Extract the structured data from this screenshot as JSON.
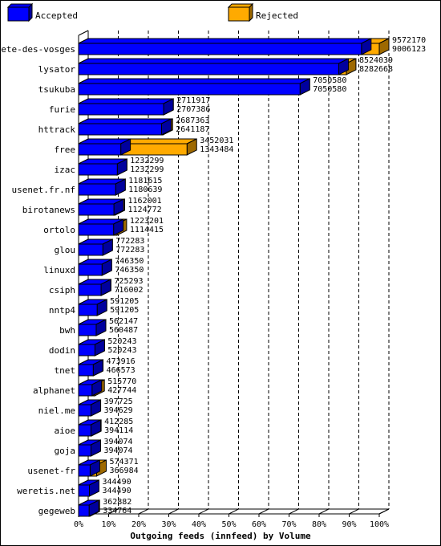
{
  "chart_data": {
    "type": "bar",
    "orientation": "horizontal",
    "style": "3d-overlapping",
    "xlabel": "Outgoing feeds (innfeed) by Volume",
    "xlim": [
      0,
      100
    ],
    "x_ticks": [
      "0%",
      "10%",
      "20%",
      "30%",
      "40%",
      "50%",
      "60%",
      "70%",
      "80%",
      "90%",
      "100%"
    ],
    "legend_position": "top",
    "grid": "vertical dashed",
    "series_meta": [
      {
        "name": "Accepted",
        "color": "#0000ff"
      },
      {
        "name": "Rejected",
        "color": "#ffaa00"
      }
    ],
    "categories": [
      "bete-des-vosges",
      "lysator",
      "tsukuba",
      "furie",
      "httrack",
      "free",
      "izac",
      "usenet.fr.nf",
      "birotanews",
      "ortolo",
      "glou",
      "linuxd",
      "csiph",
      "nntp4",
      "bwh",
      "dodin",
      "tnet",
      "alphanet",
      "niel.me",
      "aioe",
      "goja",
      "usenet-fr",
      "weretis.net",
      "gegeweb"
    ],
    "series": [
      {
        "name": "Accepted",
        "values": [
          9006123,
          8282668,
          7050580,
          2707386,
          2641187,
          1343484,
          1232299,
          1180639,
          1124772,
          1114415,
          772283,
          746350,
          716002,
          591205,
          560487,
          520243,
          466573,
          427744,
          394629,
          394114,
          394074,
          366984,
          344490,
          334764
        ]
      },
      {
        "name": "Rejected",
        "values": [
          9572170,
          8524039,
          7050580,
          2711917,
          2687363,
          3452031,
          1232299,
          1181615,
          1162001,
          1223201,
          772283,
          746350,
          725293,
          591205,
          562147,
          520243,
          473916,
          515770,
          397725,
          412285,
          394074,
          574371,
          344490,
          362882
        ]
      }
    ],
    "labels_top": [
      "9572170",
      "8524039",
      "7050580",
      "2711917",
      "2687363",
      "3452031",
      "1232299",
      "1181615",
      "1162001",
      "1223201",
      "772283",
      "746350",
      "725293",
      "591205",
      "562147",
      "520243",
      "473916",
      "515770",
      "397725",
      "412285",
      "394074",
      "574371",
      "344490",
      "362882"
    ],
    "labels_bottom": [
      "9006123",
      "8282668",
      "7050580",
      "2707386",
      "2641187",
      "1343484",
      "1232299",
      "1180639",
      "1124772",
      "1114415",
      "772283",
      "746350",
      "716002",
      "591205",
      "560487",
      "520243",
      "466573",
      "427744",
      "394629",
      "394114",
      "394074",
      "366984",
      "344490",
      "334764"
    ],
    "scale_max": 9572170
  }
}
